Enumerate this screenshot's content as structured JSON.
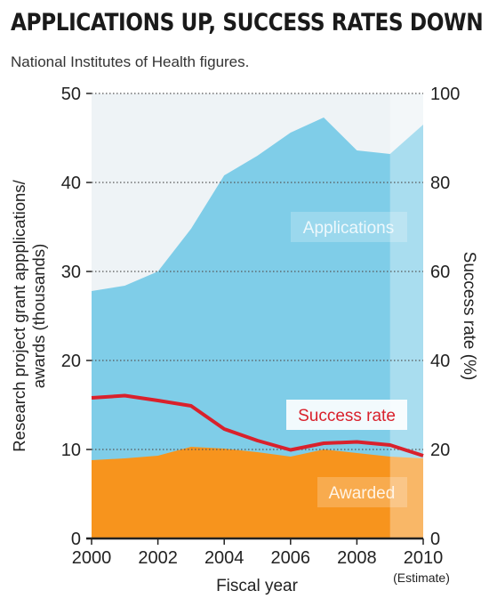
{
  "header": {
    "title": "APPLICATIONS UP, SUCCESS RATES DOWN",
    "subtitle": "National Institutes of Health figures."
  },
  "chart_data": {
    "type": "area",
    "x": [
      2000,
      2001,
      2002,
      2003,
      2004,
      2005,
      2006,
      2007,
      2008,
      2009,
      2010
    ],
    "xticks": [
      "2000",
      "2002",
      "2004",
      "2006",
      "2008",
      "2010"
    ],
    "xtick_values": [
      2000,
      2002,
      2004,
      2006,
      2008,
      2010
    ],
    "xlabel": "Fiscal year",
    "x_note": "(Estimate)",
    "estimate_from": 2009,
    "ylabel_left": "Research project grant appplications/ awards (thousands)",
    "ylabel_left_lines": [
      "Research project grant appplications/",
      "awards (thousands)"
    ],
    "ylabel_right": "Success rate (%)",
    "ylim_left": [
      0,
      50
    ],
    "ylim_right": [
      0,
      100
    ],
    "yticks_left": [
      "0",
      "10",
      "20",
      "30",
      "40",
      "50"
    ],
    "yticks_left_values": [
      0,
      10,
      20,
      30,
      40,
      50
    ],
    "yticks_right": [
      "0",
      "20",
      "40",
      "60",
      "80",
      "100"
    ],
    "yticks_right_values": [
      0,
      20,
      40,
      60,
      80,
      100
    ],
    "grid": true,
    "series": [
      {
        "name": "Applications",
        "axis": "left",
        "kind": "area",
        "color": "#7fcde8",
        "values": [
          27.8,
          28.4,
          30.0,
          34.8,
          40.8,
          43.0,
          45.6,
          47.3,
          43.6,
          43.2,
          46.5
        ]
      },
      {
        "name": "Awarded",
        "axis": "left",
        "kind": "area",
        "color": "#f7941d",
        "values": [
          8.8,
          9.0,
          9.3,
          10.3,
          10.1,
          9.7,
          9.2,
          10.0,
          9.6,
          9.2,
          9.0
        ]
      },
      {
        "name": "Success rate",
        "axis": "right",
        "kind": "line",
        "color": "#d9212c",
        "values": [
          31.6,
          32.1,
          31.0,
          29.8,
          24.6,
          22.0,
          19.9,
          21.4,
          21.7,
          21.0,
          18.6
        ]
      }
    ]
  }
}
